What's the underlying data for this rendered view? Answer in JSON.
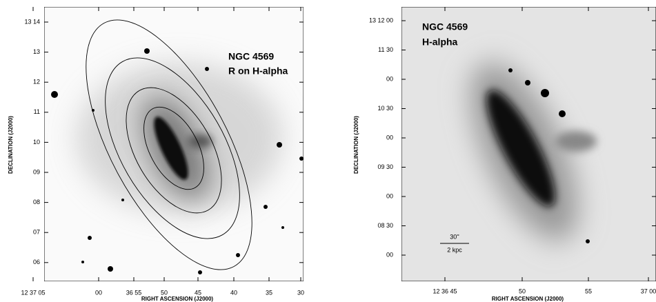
{
  "panels": [
    {
      "name": "NGC 4569",
      "label": "R on H-alpha",
      "xticks": [
        "12 37 05",
        "00",
        "36 55",
        "50",
        "45",
        "40",
        "35",
        "30"
      ],
      "yticks": [
        "13 14",
        "13",
        "12",
        "11",
        "10",
        "09",
        "08",
        "07",
        "06"
      ],
      "xlabel": "RIGHT ASCENSION (J2000)",
      "ylabel": "DECLINATION (J2000)"
    },
    {
      "name": "NGC 4569",
      "label": "H-alpha",
      "xticks": [
        "12 36 45",
        "50",
        "55",
        "37 00"
      ],
      "yticks": [
        "13 12 00",
        "11 30",
        "00",
        "10 30",
        "00",
        "09 30",
        "00",
        "08 30",
        "00"
      ],
      "xlabel": "RIGHT ASCENSION (J2000)",
      "ylabel": "DECLINATION (J2000)",
      "scalebar": {
        "angle": "30''",
        "distance": "2 kpc"
      }
    }
  ]
}
